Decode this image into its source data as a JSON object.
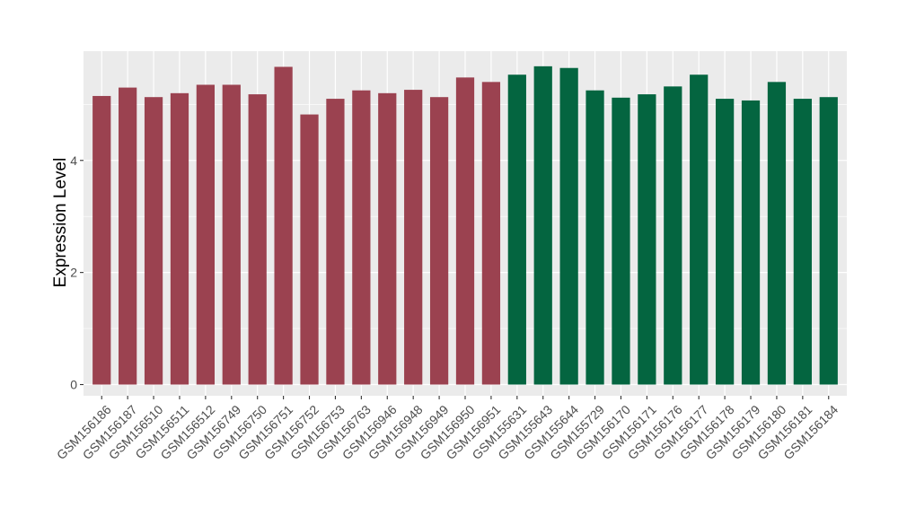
{
  "chart_data": {
    "type": "bar",
    "title": "",
    "xlabel": "",
    "ylabel": "Expression Level",
    "ylim": [
      -0.2,
      5.95
    ],
    "yticks": [
      0,
      2,
      4
    ],
    "grid": true,
    "legend": "none",
    "categories": [
      "GSM156186",
      "GSM156187",
      "GSM156510",
      "GSM156511",
      "GSM156512",
      "GSM156749",
      "GSM156750",
      "GSM156751",
      "GSM156752",
      "GSM156753",
      "GSM156763",
      "GSM156946",
      "GSM156948",
      "GSM156949",
      "GSM156950",
      "GSM156951",
      "GSM155631",
      "GSM155643",
      "GSM155644",
      "GSM155729",
      "GSM156170",
      "GSM156171",
      "GSM156176",
      "GSM156177",
      "GSM156178",
      "GSM156179",
      "GSM156180",
      "GSM156181",
      "GSM156184"
    ],
    "values": [
      5.15,
      5.3,
      5.13,
      5.2,
      5.35,
      5.35,
      5.18,
      5.67,
      4.82,
      5.1,
      5.25,
      5.2,
      5.26,
      5.13,
      5.48,
      5.4,
      5.53,
      5.68,
      5.65,
      5.25,
      5.12,
      5.18,
      5.32,
      5.53,
      5.1,
      5.07,
      5.4,
      5.1,
      5.13
    ],
    "bar_colors": [
      "#9B4250",
      "#9B4250",
      "#9B4250",
      "#9B4250",
      "#9B4250",
      "#9B4250",
      "#9B4250",
      "#9B4250",
      "#9B4250",
      "#9B4250",
      "#9B4250",
      "#9B4250",
      "#9B4250",
      "#9B4250",
      "#9B4250",
      "#9B4250",
      "#046540",
      "#046540",
      "#046540",
      "#046540",
      "#046540",
      "#046540",
      "#046540",
      "#046540",
      "#046540",
      "#046540",
      "#046540",
      "#046540",
      "#046540"
    ],
    "colors": {
      "group_a": "#9B4250",
      "group_b": "#046540",
      "panel_background": "#EBEBEB",
      "gridline": "#FFFFFF"
    }
  }
}
